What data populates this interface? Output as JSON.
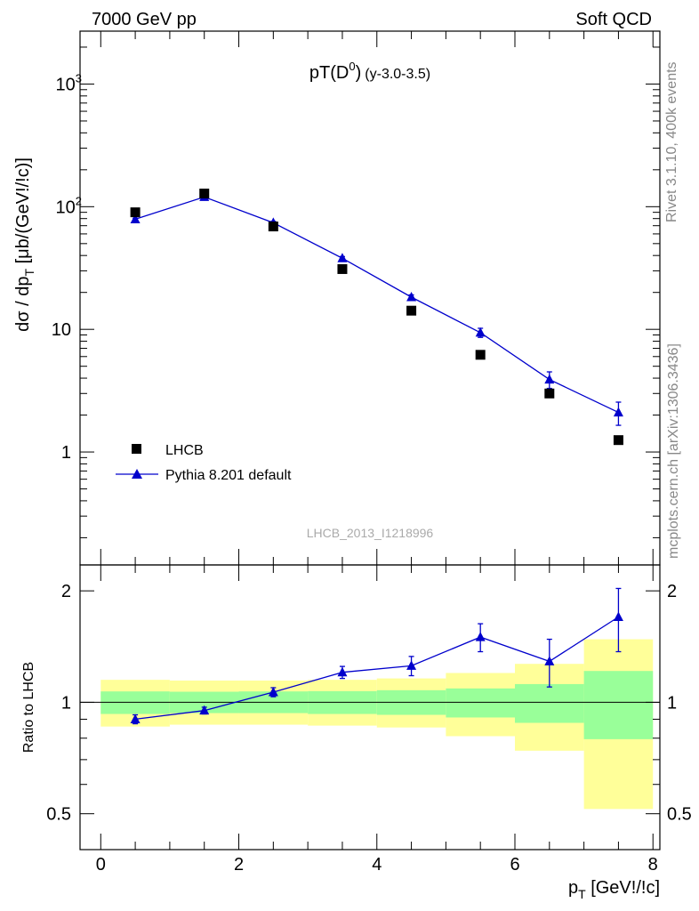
{
  "header": {
    "left": "7000 GeV pp",
    "right": "Soft QCD"
  },
  "side_labels": {
    "rivet": "Rivet 3.1.10,  400k events",
    "mcplots": "mcplots.cern.ch [arXiv:1306.3436]"
  },
  "watermark": "LHCB_2013_I1218996",
  "colors": {
    "mc": "#0000cc",
    "data": "#000000",
    "band_inner": "#99ff99",
    "band_outer": "#ffff99"
  },
  "chart_data": [
    {
      "type": "line",
      "title": "pT(D^0) (y-3.0-3.5)",
      "title_parts": {
        "main": "pT(D",
        "sup": "0",
        "close": ")",
        "sub": "(y-3.0-3.5)"
      },
      "ylabel": "dσ / dp_T [μb/(GeV!/!c)]",
      "ylabel_parts": {
        "main": "dσ / dp",
        "sub": "T",
        "rest": " [μb/(GeV!/!c)]"
      },
      "y_scale": "log",
      "xlim": [
        -0.3,
        8.1
      ],
      "ylim": [
        0.12,
        2700
      ],
      "y_ticks": [
        {
          "v": 1,
          "label": "1"
        },
        {
          "v": 10,
          "label": "10"
        },
        {
          "v": 100,
          "label": "10",
          "sup": "2"
        },
        {
          "v": 1000,
          "label": "10",
          "sup": "3"
        }
      ],
      "legend_position": "bottom-left",
      "series": [
        {
          "name": "LHCB",
          "marker": "square",
          "x": [
            0.5,
            1.5,
            2.5,
            3.5,
            4.5,
            5.5,
            6.5,
            7.5
          ],
          "y": [
            90,
            128,
            69,
            31,
            14.2,
            6.2,
            3.0,
            1.25
          ]
        },
        {
          "name": "Pythia 8.201 default",
          "marker": "triangle",
          "x": [
            0.5,
            1.5,
            2.5,
            3.5,
            4.5,
            5.5,
            6.5,
            7.5
          ],
          "y": [
            79,
            120,
            74,
            38,
            18.3,
            9.4,
            3.9,
            2.1
          ],
          "err": [
            1.5,
            2.5,
            2.0,
            1.2,
            0.8,
            0.8,
            0.6,
            0.45
          ]
        }
      ]
    },
    {
      "type": "line",
      "ylabel": "Ratio to LHCB",
      "xlabel": "p_T [GeV!/!c]",
      "xlabel_parts": {
        "main": "p",
        "sub": "T",
        "rest": " [GeV!/!c]"
      },
      "y_scale": "log",
      "xlim": [
        -0.3,
        8.1
      ],
      "ylim": [
        0.4,
        2.35
      ],
      "x_ticks": [
        0,
        2,
        4,
        6,
        8
      ],
      "y_ticks": [
        {
          "v": 0.5,
          "label": "0.5"
        },
        {
          "v": 1,
          "label": "1"
        },
        {
          "v": 2,
          "label": "2"
        }
      ],
      "reference_line": 1,
      "bands": [
        {
          "x0": 0,
          "x1": 1,
          "inner": [
            0.93,
            1.07
          ],
          "outer": [
            0.86,
            1.15
          ]
        },
        {
          "x0": 1,
          "x1": 2,
          "inner": [
            0.935,
            1.068
          ],
          "outer": [
            0.87,
            1.145
          ]
        },
        {
          "x0": 2,
          "x1": 3,
          "inner": [
            0.935,
            1.07
          ],
          "outer": [
            0.87,
            1.145
          ]
        },
        {
          "x0": 3,
          "x1": 4,
          "inner": [
            0.93,
            1.072
          ],
          "outer": [
            0.865,
            1.15
          ]
        },
        {
          "x0": 4,
          "x1": 5,
          "inner": [
            0.925,
            1.078
          ],
          "outer": [
            0.855,
            1.16
          ]
        },
        {
          "x0": 5,
          "x1": 6,
          "inner": [
            0.91,
            1.09
          ],
          "outer": [
            0.81,
            1.2
          ]
        },
        {
          "x0": 6,
          "x1": 7,
          "inner": [
            0.88,
            1.12
          ],
          "outer": [
            0.74,
            1.27
          ]
        },
        {
          "x0": 7,
          "x1": 8,
          "inner": [
            0.795,
            1.215
          ],
          "outer": [
            0.515,
            1.48
          ]
        }
      ],
      "series": [
        {
          "name": "Pythia 8.201 default",
          "marker": "triangle",
          "x": [
            0.5,
            1.5,
            2.5,
            3.5,
            4.5,
            5.5,
            6.5,
            7.5
          ],
          "y": [
            0.9,
            0.95,
            1.065,
            1.205,
            1.255,
            1.5,
            1.29,
            1.7
          ],
          "err_lo": [
            0.025,
            0.02,
            0.03,
            0.045,
            0.075,
            0.13,
            0.19,
            0.33
          ],
          "err_hi": [
            0.025,
            0.02,
            0.03,
            0.045,
            0.075,
            0.13,
            0.19,
            0.33
          ]
        }
      ]
    }
  ]
}
